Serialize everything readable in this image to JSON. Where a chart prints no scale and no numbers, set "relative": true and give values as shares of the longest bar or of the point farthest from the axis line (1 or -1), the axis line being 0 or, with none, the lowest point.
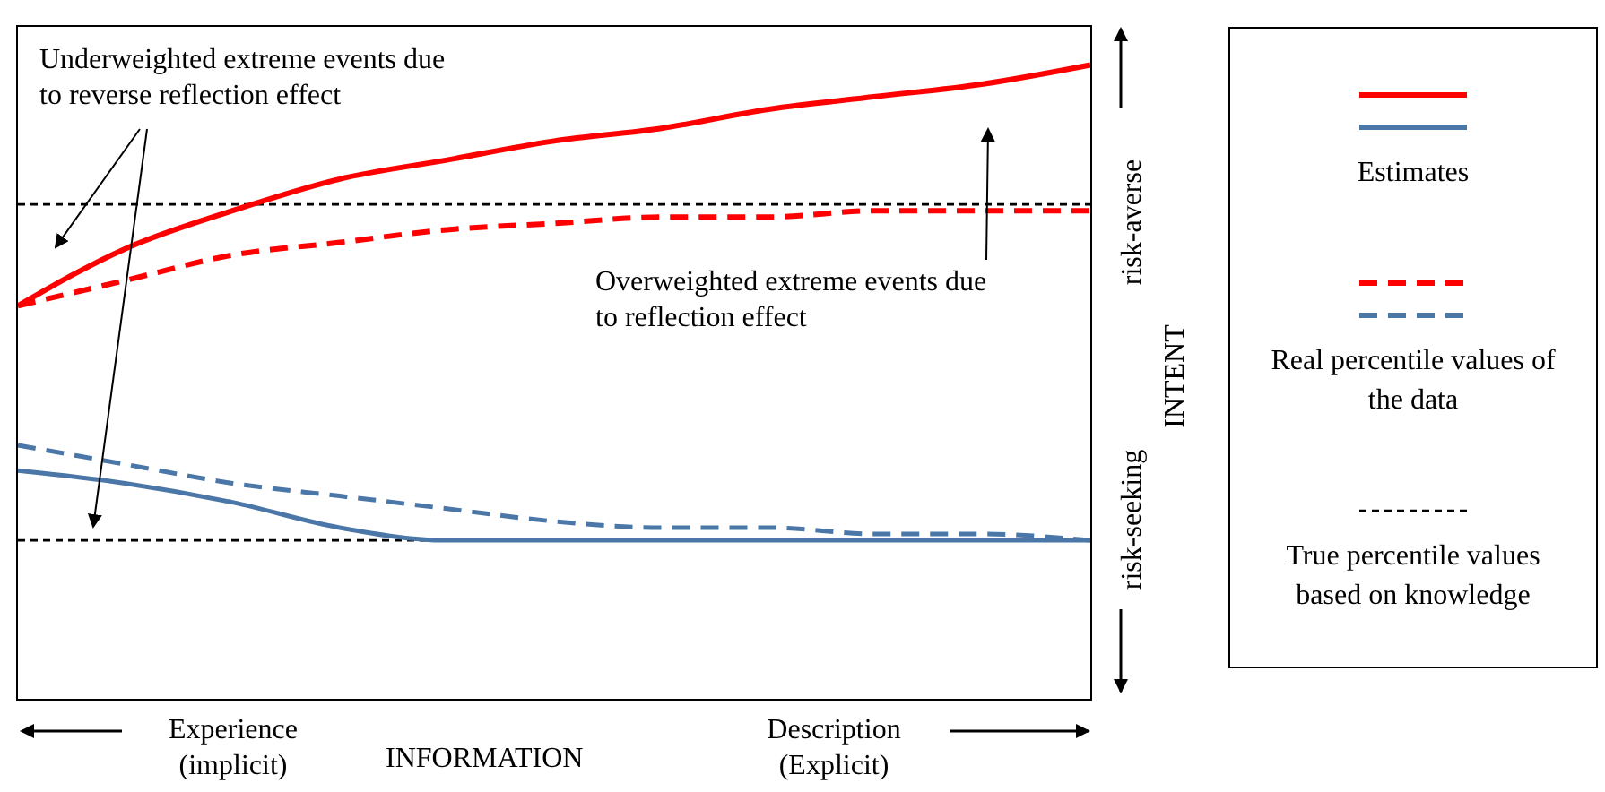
{
  "chart_data": {
    "type": "line",
    "relative": true,
    "xlabel": "INFORMATION",
    "ylabel": "INTENT",
    "categories": [
      null,
      null,
      null,
      null,
      null,
      null,
      null,
      null,
      null,
      null,
      null
    ],
    "series": [
      {
        "name": "Estimates",
        "color": "#ff0000",
        "line_style": "solid",
        "values": [
          0.62,
          0.71,
          0.77,
          0.82,
          0.85,
          0.88,
          0.9,
          0.93,
          0.95,
          0.97,
          1.0
        ]
      },
      {
        "color": "#4a76a8",
        "line_style": "solid",
        "values": [
          0.36,
          0.34,
          0.31,
          0.27,
          0.25,
          0.25,
          0.25,
          0.25,
          0.25,
          0.25,
          0.25
        ]
      },
      {
        "name": "Real percentile values of the data",
        "color": "#ff0000",
        "line_style": "dashed",
        "values": [
          0.62,
          0.66,
          0.7,
          0.72,
          0.74,
          0.75,
          0.76,
          0.76,
          0.77,
          0.77,
          0.77
        ]
      },
      {
        "color": "#4a76a8",
        "line_style": "dashed",
        "values": [
          0.4,
          0.37,
          0.34,
          0.32,
          0.3,
          0.28,
          0.27,
          0.27,
          0.26,
          0.26,
          0.25
        ]
      }
    ],
    "ref_lines": [
      {
        "axis": "y",
        "value": 0.78,
        "label": "True percentile values based on knowledge",
        "color": "#000000",
        "line_style": "dashed"
      },
      {
        "axis": "y",
        "value": 0.25,
        "color": "#000000",
        "line_style": "dashed"
      }
    ],
    "annotations": [
      "Underweighted extreme events due to reverse reflection effect",
      "Overweighted extreme events due to reflection effect",
      "Experience (implicit)",
      "Description (Explicit)",
      "risk-averse",
      "risk-seeking"
    ],
    "marker": "none",
    "legend": "right"
  }
}
